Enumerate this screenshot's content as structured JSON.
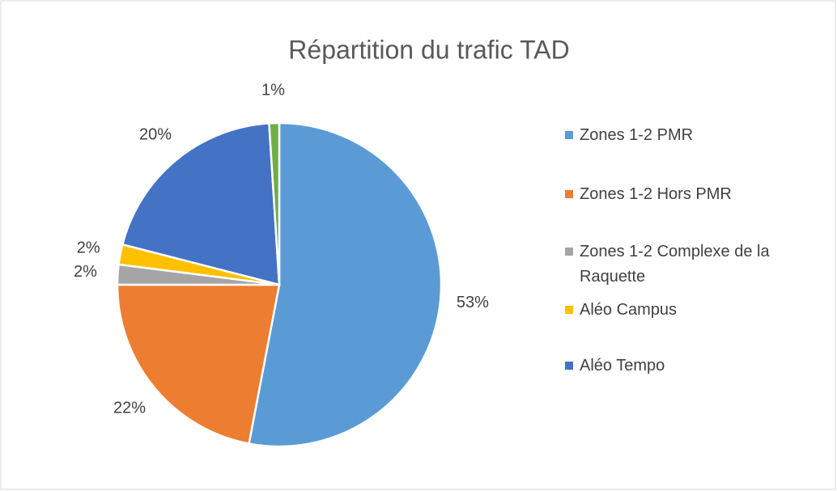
{
  "chart_data": {
    "type": "pie",
    "title": "Répartition du trafic TAD",
    "categories": [
      "Zones 1-2 PMR",
      "Zones 1-2 Hors PMR",
      "Zones 1-2 Complexe de la Raquette",
      "Aléo Campus",
      "Aléo Tempo",
      null
    ],
    "values": [
      53,
      22,
      2,
      2,
      20,
      1
    ],
    "value_labels": [
      "53%",
      "22%",
      "2%",
      "2%",
      "20%",
      "1%"
    ],
    "colors": [
      "#5b9bd5",
      "#ed7d31",
      "#a5a5a5",
      "#ffc000",
      "#4472c4",
      "#70ad47"
    ]
  }
}
